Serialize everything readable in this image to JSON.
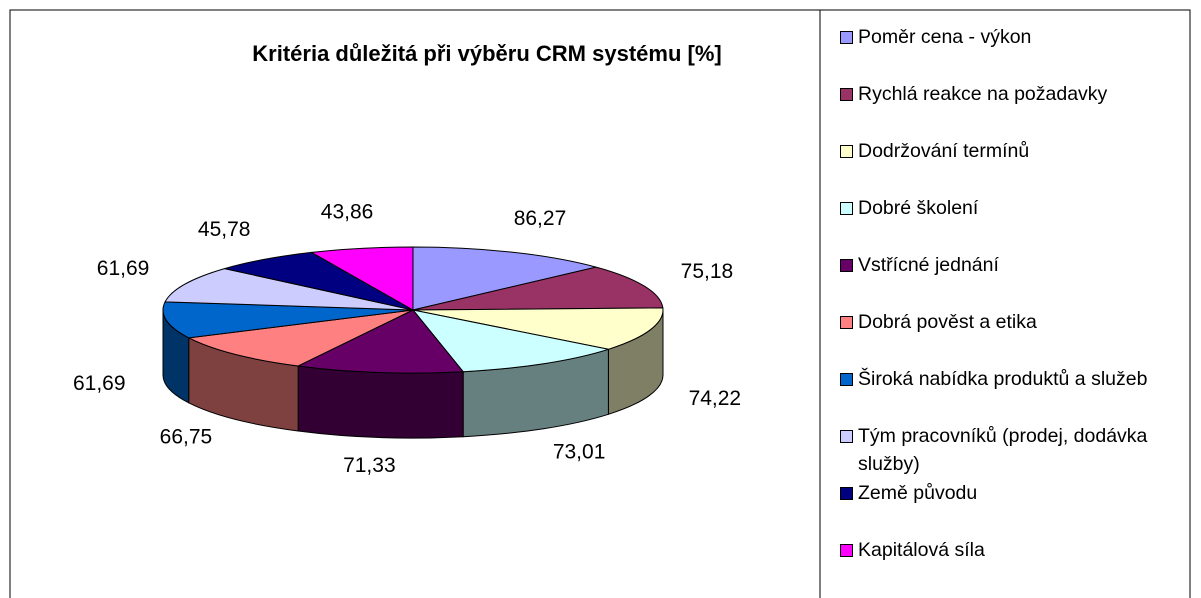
{
  "chart_data": {
    "type": "pie3d",
    "title": "Kritéria důležitá při výběru CRM systému [%]",
    "categories": [
      "Poměr cena - výkon",
      "Rychlá reakce na požadavky",
      "Dodržování termínů",
      "Dobré školení",
      "Vstřícné jednání",
      "Dobrá pověst a etika",
      "Široká nabídka produktů a služeb",
      "Tým pracovníků (prodej, dodávka služby)",
      "Země původu",
      "Kapitálová síla"
    ],
    "values": [
      86.27,
      75.18,
      74.22,
      73.01,
      71.33,
      66.75,
      61.69,
      61.69,
      45.78,
      43.86
    ],
    "value_labels": [
      "86,27",
      "75,18",
      "74,22",
      "73,01",
      "71,33",
      "66,75",
      "61,69",
      "61,69",
      "45,78",
      "43,86"
    ],
    "colors": [
      "#9999ff",
      "#993366",
      "#ffffcc",
      "#ccffff",
      "#660066",
      "#ff8080",
      "#0066cc",
      "#ccccff",
      "#000080",
      "#ff00ff"
    ],
    "legend": "right"
  }
}
